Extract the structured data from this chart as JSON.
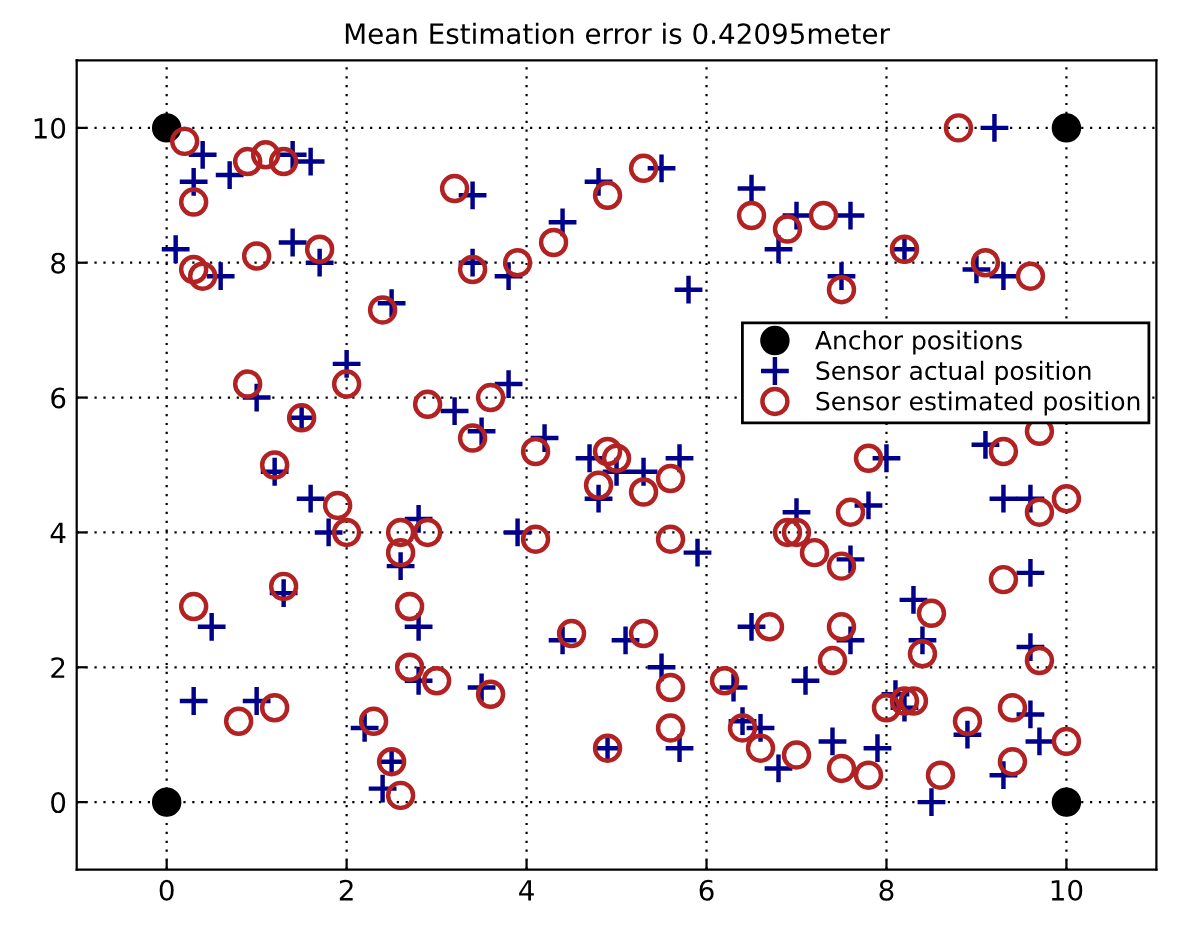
{
  "chart_data": {
    "type": "scatter",
    "title": "Mean Estimation error is 0.42095meter",
    "xlim": [
      -1,
      11
    ],
    "ylim": [
      -1,
      11
    ],
    "xticks": [
      0,
      2,
      4,
      6,
      8,
      10
    ],
    "yticks": [
      0,
      2,
      4,
      6,
      8,
      10
    ],
    "grid": true,
    "legend": "top right",
    "series": [
      {
        "name": "Anchor positions",
        "color": "#000000",
        "marker": "circle",
        "x": [
          0,
          0,
          10,
          10
        ],
        "values": [
          0,
          10,
          0,
          10
        ]
      },
      {
        "name": "Sensor actual position",
        "color": "#00008b",
        "marker": "cross",
        "x": [
          0.4,
          0.3,
          0.7,
          1.4,
          1.6,
          0.1,
          0.6,
          1.4,
          1.7,
          2.5,
          2.0,
          1.0,
          1.5,
          1.2,
          1.6,
          1.8,
          1.3,
          0.5,
          0.3,
          1.0,
          2.2,
          2.5,
          2.4,
          2.8,
          2.8,
          2.6,
          2.8,
          3.5,
          4.4,
          5.1,
          4.9,
          5.5,
          5.7,
          6.3,
          6.4,
          6.6,
          6.8,
          3.9,
          5.9,
          6.5,
          4.7,
          5.0,
          4.8,
          5.3,
          5.7,
          4.2,
          8.0,
          9.1,
          9.3,
          9.6,
          7.0,
          7.8,
          7.6,
          9.6,
          8.3,
          8.4,
          7.6,
          7.1,
          9.6,
          8.1,
          8.2,
          9.6,
          8.9,
          9.7,
          9.3,
          8.5,
          7.9,
          7.4,
          9.2,
          7.6,
          7.0,
          6.8,
          6.5,
          8.2,
          9.0,
          9.3,
          7.5,
          3.4,
          4.8,
          5.5,
          3.4,
          3.8,
          4.4,
          3.2,
          3.8,
          3.5,
          5.8
        ],
        "values": [
          9.6,
          9.2,
          9.3,
          9.6,
          9.5,
          8.2,
          7.8,
          8.3,
          8.0,
          7.4,
          6.5,
          6.0,
          5.7,
          4.9,
          4.5,
          4.0,
          3.1,
          2.6,
          1.5,
          1.5,
          1.1,
          0.6,
          0.2,
          2.6,
          1.8,
          3.5,
          4.2,
          1.7,
          2.4,
          2.4,
          0.8,
          2.0,
          0.8,
          1.7,
          1.2,
          1.1,
          0.5,
          4.0,
          3.7,
          2.6,
          5.1,
          4.9,
          4.5,
          4.9,
          5.1,
          5.4,
          5.1,
          5.3,
          4.5,
          4.5,
          4.3,
          4.4,
          3.6,
          3.4,
          3.0,
          2.4,
          2.4,
          1.8,
          2.3,
          1.6,
          1.4,
          1.3,
          1.0,
          0.9,
          0.4,
          0.0,
          0.8,
          0.9,
          10.0,
          8.7,
          8.7,
          8.2,
          9.1,
          8.2,
          7.9,
          7.8,
          7.8,
          9.0,
          9.2,
          9.4,
          8.0,
          7.8,
          8.6,
          5.8,
          6.2,
          5.5,
          7.6
        ]
      },
      {
        "name": "Sensor estimated position",
        "color": "#b22222",
        "marker": "circle",
        "x": [
          0.2,
          0.3,
          0.9,
          1.1,
          1.3,
          0.3,
          0.4,
          1.0,
          1.7,
          2.4,
          2.0,
          0.9,
          1.5,
          1.2,
          1.9,
          2.0,
          1.3,
          0.3,
          0.8,
          1.2,
          2.3,
          2.5,
          2.6,
          2.7,
          2.7,
          2.6,
          2.6,
          2.9,
          3.0,
          3.6,
          4.5,
          5.3,
          4.9,
          5.6,
          5.6,
          6.2,
          6.4,
          6.6,
          7.0,
          4.1,
          5.6,
          6.7,
          4.9,
          5.0,
          4.8,
          5.3,
          5.6,
          4.1,
          7.8,
          9.3,
          9.7,
          10.0,
          6.9,
          7.0,
          7.6,
          7.5,
          7.2,
          9.3,
          8.5,
          8.4,
          7.5,
          7.4,
          9.7,
          8.0,
          8.2,
          8.3,
          9.4,
          8.9,
          10.0,
          9.4,
          8.6,
          7.8,
          7.5,
          8.8,
          7.3,
          6.9,
          6.5,
          8.2,
          9.1,
          9.6,
          7.5,
          3.2,
          4.9,
          5.3,
          3.4,
          3.9,
          4.3,
          2.9,
          3.6,
          3.4,
          9.7
        ],
        "values": [
          9.8,
          8.9,
          9.5,
          9.6,
          9.5,
          7.9,
          7.8,
          8.1,
          8.2,
          7.3,
          6.2,
          6.2,
          5.7,
          5.0,
          4.4,
          4.0,
          3.2,
          2.9,
          1.2,
          1.4,
          1.2,
          0.6,
          0.1,
          2.9,
          2.0,
          3.7,
          4.0,
          4.0,
          1.8,
          1.6,
          2.5,
          2.5,
          0.8,
          1.7,
          1.1,
          1.8,
          1.1,
          0.8,
          0.7,
          3.9,
          3.9,
          2.6,
          5.2,
          5.1,
          4.7,
          4.6,
          4.8,
          5.2,
          5.1,
          5.2,
          4.3,
          4.5,
          4.0,
          4.0,
          4.3,
          3.5,
          3.7,
          3.3,
          2.8,
          2.2,
          2.6,
          2.1,
          2.1,
          1.4,
          1.5,
          1.5,
          1.4,
          1.2,
          0.9,
          0.6,
          0.4,
          0.4,
          0.5,
          10.0,
          8.7,
          8.5,
          8.7,
          8.2,
          8.0,
          7.8,
          7.6,
          9.1,
          9.0,
          9.4,
          7.9,
          8.0,
          8.3,
          5.9,
          6.0,
          5.4,
          5.5
        ]
      }
    ]
  }
}
